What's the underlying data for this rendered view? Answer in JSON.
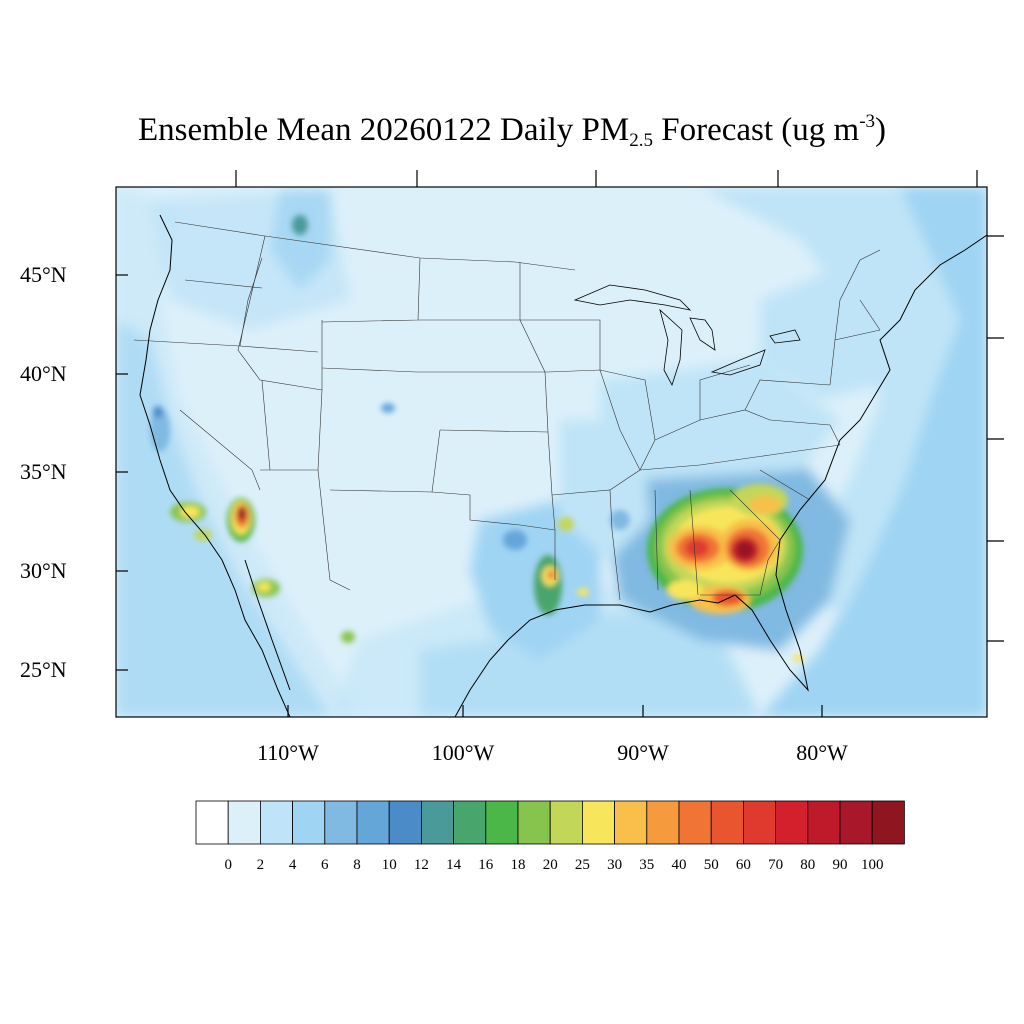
{
  "title": {
    "prefix": "Ensemble Mean 20260122 Daily PM",
    "subscript": "2.5",
    "middle": " Forecast (ug m",
    "superscript": "-3",
    "suffix": ")"
  },
  "map": {
    "region": "Contiguous United States",
    "projection": "Lambert Conformal",
    "field": "PM2.5 daily mean concentration",
    "background_color": "#dcf0fa",
    "lat_labels": [
      "45°N",
      "40°N",
      "35°N",
      "30°N",
      "25°N"
    ],
    "lon_labels": [
      "110°W",
      "100°W",
      "90°W",
      "80°W"
    ],
    "hotspots": [
      {
        "name": "Southeast US (Georgia / Alabama / Florida panhandle)",
        "peak": "90-100"
      },
      {
        "name": "Southern Georgia",
        "peak": "70-80"
      },
      {
        "name": "Northwest Florida coast",
        "peak": "50-60"
      },
      {
        "name": "Phoenix, Arizona",
        "peak": "90-100"
      },
      {
        "name": "Los Angeles basin",
        "peak": "25-30"
      },
      {
        "name": "Tucson, Arizona",
        "peak": "25-30"
      },
      {
        "name": "Houston, Texas",
        "peak": "30-35"
      },
      {
        "name": "Dallas, Texas",
        "peak": "20-25"
      },
      {
        "name": "Louisiana coast",
        "peak": "25-30"
      }
    ]
  },
  "colorbar": {
    "colors": [
      "#ffffff",
      "#dcf0fa",
      "#bfe4f7",
      "#9fd4f3",
      "#80b9e1",
      "#65a6d9",
      "#4a8bc8",
      "#4a9a9a",
      "#48a56c",
      "#4bb748",
      "#86c44e",
      "#c2d758",
      "#f7e65b",
      "#f8c04a",
      "#f59b3e",
      "#f07534",
      "#e9552f",
      "#df3a2d",
      "#d4202c",
      "#be1a2a",
      "#a8182a",
      "#8f1520"
    ],
    "labels": [
      "0",
      "2",
      "4",
      "6",
      "8",
      "10",
      "12",
      "14",
      "16",
      "18",
      "20",
      "25",
      "30",
      "35",
      "40",
      "50",
      "60",
      "70",
      "80",
      "90",
      "100"
    ]
  }
}
